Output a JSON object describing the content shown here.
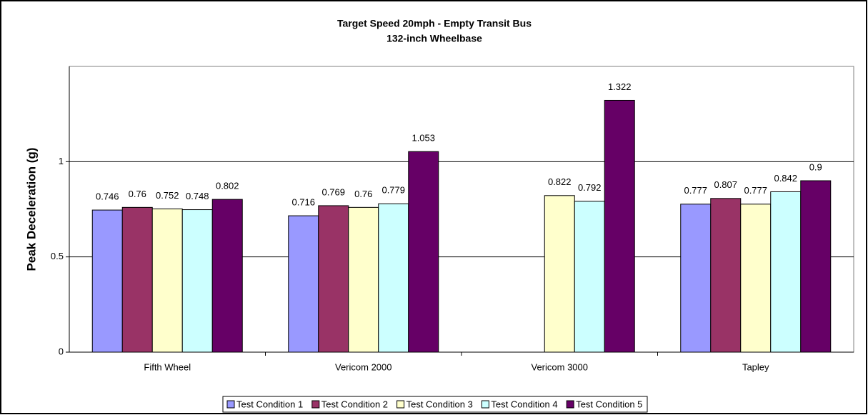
{
  "chart_data": {
    "type": "bar",
    "title": "Target Speed 20mph - Empty Transit Bus",
    "subtitle": "132-inch Wheelbase",
    "y_label": "Peak Deceleration (g)",
    "categories": [
      "Fifth Wheel",
      "Vericom 2000",
      "Vericom 3000",
      "Tapley"
    ],
    "series": [
      {
        "name": "Test Condition 1",
        "color": "#9999ff",
        "values": [
          0.746,
          0.716,
          null,
          0.777
        ]
      },
      {
        "name": "Test Condition 2",
        "color": "#993366",
        "values": [
          0.76,
          0.769,
          null,
          0.807
        ]
      },
      {
        "name": "Test Condition 3",
        "color": "#ffffcc",
        "values": [
          0.752,
          0.76,
          0.822,
          0.777
        ]
      },
      {
        "name": "Test Condition 4",
        "color": "#ccffff",
        "values": [
          0.748,
          0.779,
          0.792,
          0.842
        ]
      },
      {
        "name": "Test Condition 5",
        "color": "#660066",
        "values": [
          0.802,
          1.053,
          1.322,
          0.9
        ]
      }
    ],
    "ylim": [
      0,
      1.5
    ],
    "yticks": [
      0,
      0.5,
      1
    ],
    "grid": true,
    "legend": "bottom"
  }
}
